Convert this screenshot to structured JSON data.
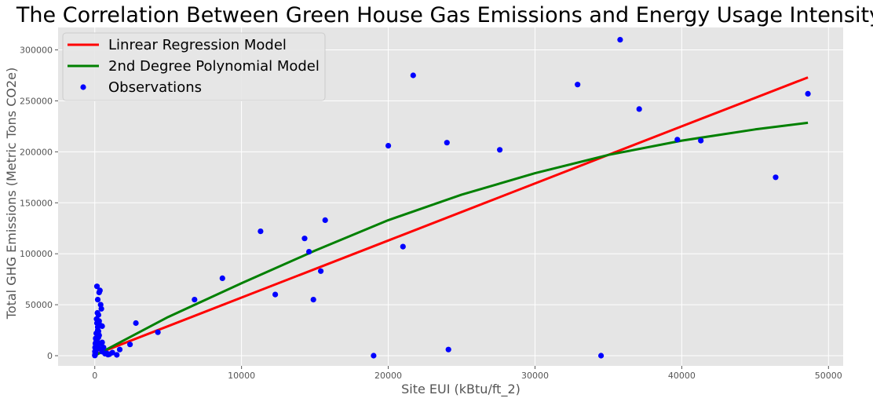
{
  "chart_data": {
    "type": "scatter",
    "title": "The Correlation Between Green House Gas Emissions and Energy Usage Intensity",
    "xlabel": "Site EUI (kBtu/ft_2)",
    "ylabel": "Total GHG Emissions (Metric Tons CO2e)",
    "xlim": [
      -2500,
      51000
    ],
    "ylim": [
      -10000,
      322000
    ],
    "xticks": [
      0,
      10000,
      20000,
      30000,
      40000,
      50000
    ],
    "xtick_labels": [
      "0",
      "10000",
      "20000",
      "30000",
      "40000",
      "50000"
    ],
    "yticks": [
      0,
      50000,
      100000,
      150000,
      200000,
      250000,
      300000
    ],
    "ytick_labels": [
      "0",
      "50000",
      "100000",
      "150000",
      "200000",
      "250000",
      "300000"
    ],
    "grid": true,
    "legend_position": "top-left",
    "background": "#e5e5e5",
    "series": [
      {
        "name": "Linrear Regression Model",
        "kind": "line",
        "color": "#ff0000",
        "x": [
          0,
          10000,
          20000,
          30000,
          40000,
          48600
        ],
        "y": [
          1000,
          57000,
          113000,
          169000,
          225000,
          273000
        ]
      },
      {
        "name": "2nd Degree Polynomial Model",
        "kind": "line",
        "color": "#008000",
        "x": [
          0,
          5000,
          10000,
          15000,
          20000,
          25000,
          30000,
          35000,
          40000,
          45000,
          48600
        ],
        "y": [
          0,
          38000,
          71000,
          103000,
          133000,
          158000,
          179000,
          197000,
          211000,
          222000,
          228500
        ]
      },
      {
        "name": "Observations",
        "kind": "scatter",
        "color": "#0000ff",
        "x": [
          35800,
          21700,
          32900,
          37100,
          48600,
          24000,
          20000,
          27600,
          39700,
          41300,
          46400,
          15700,
          11300,
          14300,
          14600,
          21000,
          15400,
          8700,
          12300,
          6800,
          14900,
          2800,
          4300,
          2400,
          1700,
          19000,
          24100,
          34500,
          1200,
          900,
          700,
          600,
          500,
          400,
          300,
          250,
          200,
          150,
          100,
          80,
          50,
          30,
          20,
          10,
          5,
          150,
          200,
          300,
          350,
          400,
          450,
          250,
          180,
          120,
          350,
          500,
          300,
          200,
          100,
          60,
          40,
          20,
          10,
          300,
          500,
          800,
          1000,
          1500,
          150,
          250,
          100
        ],
        "y": [
          310000,
          275000,
          266000,
          242000,
          257000,
          209000,
          206000,
          202000,
          212000,
          211000,
          175000,
          133000,
          122000,
          115000,
          102000,
          107000,
          83000,
          76000,
          60000,
          55000,
          55000,
          32000,
          23000,
          11000,
          6000,
          0,
          6000,
          0,
          3000,
          1000,
          2000,
          8000,
          13000,
          12000,
          20000,
          18000,
          25000,
          15000,
          10000,
          5000,
          3000,
          2000,
          1000,
          500,
          200,
          68000,
          55000,
          62000,
          64000,
          50000,
          46000,
          40000,
          42000,
          36000,
          30000,
          29000,
          34000,
          28000,
          22000,
          17000,
          12000,
          8000,
          4000,
          7000,
          4000,
          2500,
          1500,
          800,
          32000,
          24000,
          14000
        ]
      }
    ]
  }
}
